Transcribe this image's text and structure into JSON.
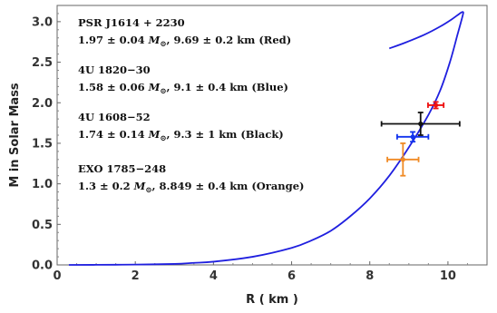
{
  "chart_data": {
    "type": "scatter",
    "xlabel": "R ( km )",
    "ylabel": "M   in   Solar  Mass",
    "xlim": [
      0,
      11
    ],
    "ylim": [
      0,
      3.2
    ],
    "x_ticks": [
      0,
      2,
      4,
      6,
      8,
      10
    ],
    "y_ticks": [
      0.0,
      0.5,
      1.0,
      1.5,
      2.0,
      2.5,
      3.0
    ],
    "x_tick_labels": [
      "0",
      "2",
      "4",
      "6",
      "8",
      "10"
    ],
    "y_tick_labels": [
      "0.0",
      "0.5",
      "1.0",
      "1.5",
      "2.0",
      "2.5",
      "3.0"
    ],
    "curve": {
      "color": "#1f1fdf",
      "points": [
        [
          0.3,
          0.0
        ],
        [
          1.0,
          0.001
        ],
        [
          2.0,
          0.004
        ],
        [
          3.0,
          0.012
        ],
        [
          3.5,
          0.025
        ],
        [
          4.0,
          0.04
        ],
        [
          5.0,
          0.1
        ],
        [
          6.0,
          0.21
        ],
        [
          6.5,
          0.3
        ],
        [
          7.0,
          0.42
        ],
        [
          7.5,
          0.6
        ],
        [
          8.0,
          0.82
        ],
        [
          8.5,
          1.1
        ],
        [
          9.0,
          1.45
        ],
        [
          9.5,
          1.85
        ],
        [
          9.8,
          2.15
        ],
        [
          10.05,
          2.5
        ],
        [
          10.25,
          2.85
        ],
        [
          10.38,
          3.08
        ],
        [
          10.38,
          3.12
        ],
        [
          10.3,
          3.1
        ],
        [
          10.1,
          3.03
        ],
        [
          9.8,
          2.94
        ],
        [
          9.4,
          2.84
        ],
        [
          8.9,
          2.74
        ],
        [
          8.5,
          2.67
        ]
      ]
    },
    "series": [
      {
        "name": "PSR J1614 + 2230",
        "x": 9.69,
        "xerr": 0.2,
        "y": 1.97,
        "yerr": 0.04,
        "color": "#ee1111"
      },
      {
        "name": "4U 1820−30",
        "x": 9.1,
        "xerr": 0.4,
        "y": 1.58,
        "yerr": 0.06,
        "color": "#1133ee"
      },
      {
        "name": "4U 1608−52",
        "x": 9.3,
        "xerr": 1.0,
        "y": 1.74,
        "yerr": 0.14,
        "color": "#111111"
      },
      {
        "name": "EXO 1785−248",
        "x": 8.849,
        "xerr": 0.4,
        "y": 1.3,
        "yerr": 0.2,
        "color": "#f08a24"
      }
    ],
    "annotations": [
      {
        "name": "PSR J1614 + 2230",
        "mass": "1.97 ± 0.04",
        "radius": "9.69 ± 0.2 km (Red)"
      },
      {
        "name": "4U 1820−30",
        "mass": "1.58 ± 0.06",
        "radius": "9.1 ± 0.4 km (Blue)"
      },
      {
        "name": "4U 1608−52",
        "mass": "1.74 ± 0.14",
        "radius": "9.3 ± 1 km (Black)"
      },
      {
        "name": "EXO 1785−248",
        "mass": "1.3 ± 0.2",
        "radius": "8.849 ± 0.4 km (Orange)"
      }
    ],
    "mass_unit": "M⊙",
    "grid": false
  }
}
